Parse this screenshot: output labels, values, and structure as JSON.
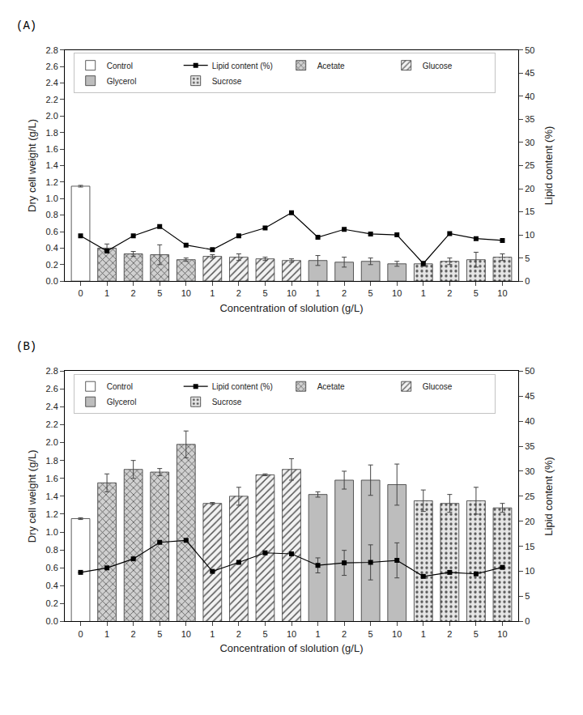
{
  "chart_data": [
    {
      "type": "bar",
      "title": "(A)",
      "x_label": "Concentration of slolution (g/L)",
      "y_label": "Dry cell weight (g/L)",
      "y2_label": "Lipid content (%)",
      "categories": [
        "0",
        "1",
        "2",
        "5",
        "10",
        "1",
        "2",
        "5",
        "10",
        "1",
        "2",
        "5",
        "10",
        "1",
        "2",
        "5",
        "10"
      ],
      "ylim": [
        0,
        2.8
      ],
      "yticks": [
        {
          "value": 0,
          "label": "0.0"
        },
        0.2,
        0.4,
        0.6,
        0.8,
        {
          "value": 1,
          "label": "1.0"
        },
        1.2,
        1.4,
        1.6,
        1.8,
        {
          "value": 2,
          "label": "2.0"
        },
        2.2,
        2.4,
        2.6,
        2.8
      ],
      "y2lim": [
        0,
        50
      ],
      "y2ticks": [
        0,
        5,
        10,
        15,
        20,
        25,
        30,
        35,
        40,
        45,
        50
      ],
      "legend": "upper left",
      "series": [
        {
          "name": "Control",
          "color": "#ffffff",
          "values": [
            1.15,
            null,
            null,
            null,
            null,
            null,
            null,
            null,
            null,
            null,
            null,
            null,
            null,
            null,
            null,
            null,
            null
          ],
          "error": [
            0.01,
            null,
            null,
            null,
            null,
            null,
            null,
            null,
            null,
            null,
            null,
            null,
            null,
            null,
            null,
            null,
            null
          ]
        },
        {
          "name": "Acetate",
          "color": "#d0d0d0",
          "values": [
            null,
            0.4,
            0.33,
            0.32,
            0.26,
            null,
            null,
            null,
            null,
            null,
            null,
            null,
            null,
            null,
            null,
            null,
            null
          ],
          "error": [
            null,
            0.05,
            0.03,
            0.12,
            0.02,
            null,
            null,
            null,
            null,
            null,
            null,
            null,
            null,
            null,
            null,
            null,
            null
          ]
        },
        {
          "name": "Glucose",
          "color": "#f2f2f2",
          "values": [
            null,
            null,
            null,
            null,
            null,
            0.3,
            0.29,
            0.27,
            0.25,
            null,
            null,
            null,
            null,
            null,
            null,
            null,
            null
          ],
          "error": [
            null,
            null,
            null,
            null,
            null,
            0.02,
            0.04,
            0.02,
            0.02,
            null,
            null,
            null,
            null,
            null,
            null,
            null,
            null
          ]
        },
        {
          "name": "Glycerol",
          "color": "#bdbdbd",
          "values": [
            null,
            null,
            null,
            null,
            null,
            null,
            null,
            null,
            null,
            0.25,
            0.23,
            0.24,
            0.21,
            null,
            null,
            null,
            null
          ],
          "error": [
            null,
            null,
            null,
            null,
            null,
            null,
            null,
            null,
            null,
            0.06,
            0.06,
            0.04,
            0.03,
            null,
            null,
            null,
            null
          ]
        },
        {
          "name": "Sucrose",
          "color": "#e6e6e6",
          "values": [
            null,
            null,
            null,
            null,
            null,
            null,
            null,
            null,
            null,
            null,
            null,
            null,
            null,
            0.21,
            0.24,
            0.26,
            0.29
          ],
          "error": [
            null,
            null,
            null,
            null,
            null,
            null,
            null,
            null,
            null,
            null,
            null,
            null,
            null,
            0.03,
            0.04,
            0.09,
            0.04
          ]
        },
        {
          "name": "Lipid content (%)",
          "type": "line",
          "axis": "y2",
          "color": "#000000",
          "marker": "square",
          "values": [
            9.8,
            6.5,
            9.8,
            11.8,
            7.8,
            6.8,
            9.8,
            11.5,
            14.8,
            9.5,
            11.2,
            10.2,
            10.0,
            3.8,
            10.3,
            9.2,
            8.8
          ]
        }
      ]
    },
    {
      "type": "bar",
      "title": "(B)",
      "x_label": "Concentration of slolution (g/L)",
      "y_label": "Dry cell weight (g/L)",
      "y2_label": "Lipid content (%)",
      "categories": [
        "0",
        "1",
        "2",
        "5",
        "10",
        "1",
        "2",
        "5",
        "10",
        "1",
        "2",
        "5",
        "10",
        "1",
        "2",
        "5",
        "10"
      ],
      "ylim": [
        0,
        2.8
      ],
      "yticks": [
        {
          "value": 0,
          "label": "0.0"
        },
        0.2,
        0.4,
        0.6,
        0.8,
        {
          "value": 1,
          "label": "1.0"
        },
        1.2,
        1.4,
        1.6,
        1.8,
        {
          "value": 2,
          "label": "2.0"
        },
        2.2,
        2.4,
        2.6,
        2.8
      ],
      "y2lim": [
        0,
        50
      ],
      "y2ticks": [
        0,
        5,
        10,
        15,
        20,
        25,
        30,
        35,
        40,
        45,
        50
      ],
      "legend": "upper left",
      "series": [
        {
          "name": "Control",
          "color": "#ffffff",
          "values": [
            1.15,
            null,
            null,
            null,
            null,
            null,
            null,
            null,
            null,
            null,
            null,
            null,
            null,
            null,
            null,
            null,
            null
          ],
          "error": [
            0.01,
            null,
            null,
            null,
            null,
            null,
            null,
            null,
            null,
            null,
            null,
            null,
            null,
            null,
            null,
            null,
            null
          ]
        },
        {
          "name": "Acetate",
          "color": "#d0d0d0",
          "values": [
            null,
            1.55,
            1.7,
            1.67,
            1.98,
            null,
            null,
            null,
            null,
            null,
            null,
            null,
            null,
            null,
            null,
            null,
            null
          ],
          "error": [
            null,
            0.1,
            0.1,
            0.04,
            0.15,
            null,
            null,
            null,
            null,
            null,
            null,
            null,
            null,
            null,
            null,
            null,
            null
          ]
        },
        {
          "name": "Glucose",
          "color": "#f2f2f2",
          "values": [
            null,
            null,
            null,
            null,
            null,
            1.32,
            1.4,
            1.64,
            1.7,
            null,
            null,
            null,
            null,
            null,
            null,
            null,
            null
          ],
          "error": [
            null,
            null,
            null,
            null,
            null,
            0.01,
            0.1,
            0.01,
            0.12,
            null,
            null,
            null,
            null,
            null,
            null,
            null,
            null
          ]
        },
        {
          "name": "Glycerol",
          "color": "#bdbdbd",
          "values": [
            null,
            null,
            null,
            null,
            null,
            null,
            null,
            null,
            null,
            1.42,
            1.58,
            1.58,
            1.53,
            null,
            null,
            null,
            null
          ],
          "error": [
            null,
            null,
            null,
            null,
            null,
            null,
            null,
            null,
            null,
            0.03,
            0.1,
            0.17,
            0.23,
            null,
            null,
            null,
            null
          ]
        },
        {
          "name": "Sucrose",
          "color": "#e6e6e6",
          "values": [
            null,
            null,
            null,
            null,
            null,
            null,
            null,
            null,
            null,
            null,
            null,
            null,
            null,
            1.35,
            1.32,
            1.35,
            1.27
          ],
          "error": [
            null,
            null,
            null,
            null,
            null,
            null,
            null,
            null,
            null,
            null,
            null,
            null,
            null,
            0.12,
            0.1,
            0.15,
            0.05
          ]
        },
        {
          "name": "Lipid content (%)",
          "type": "line",
          "axis": "y2",
          "color": "#000000",
          "marker": "square",
          "values": [
            9.8,
            10.7,
            12.5,
            15.8,
            16.2,
            10.0,
            11.8,
            13.7,
            13.5,
            11.2,
            11.7,
            11.8,
            12.2,
            9.0,
            9.8,
            9.5,
            10.8
          ],
          "error": [
            null,
            null,
            null,
            null,
            null,
            null,
            null,
            null,
            null,
            1.5,
            2.5,
            3.5,
            3.5,
            null,
            null,
            null,
            null
          ]
        }
      ]
    }
  ]
}
